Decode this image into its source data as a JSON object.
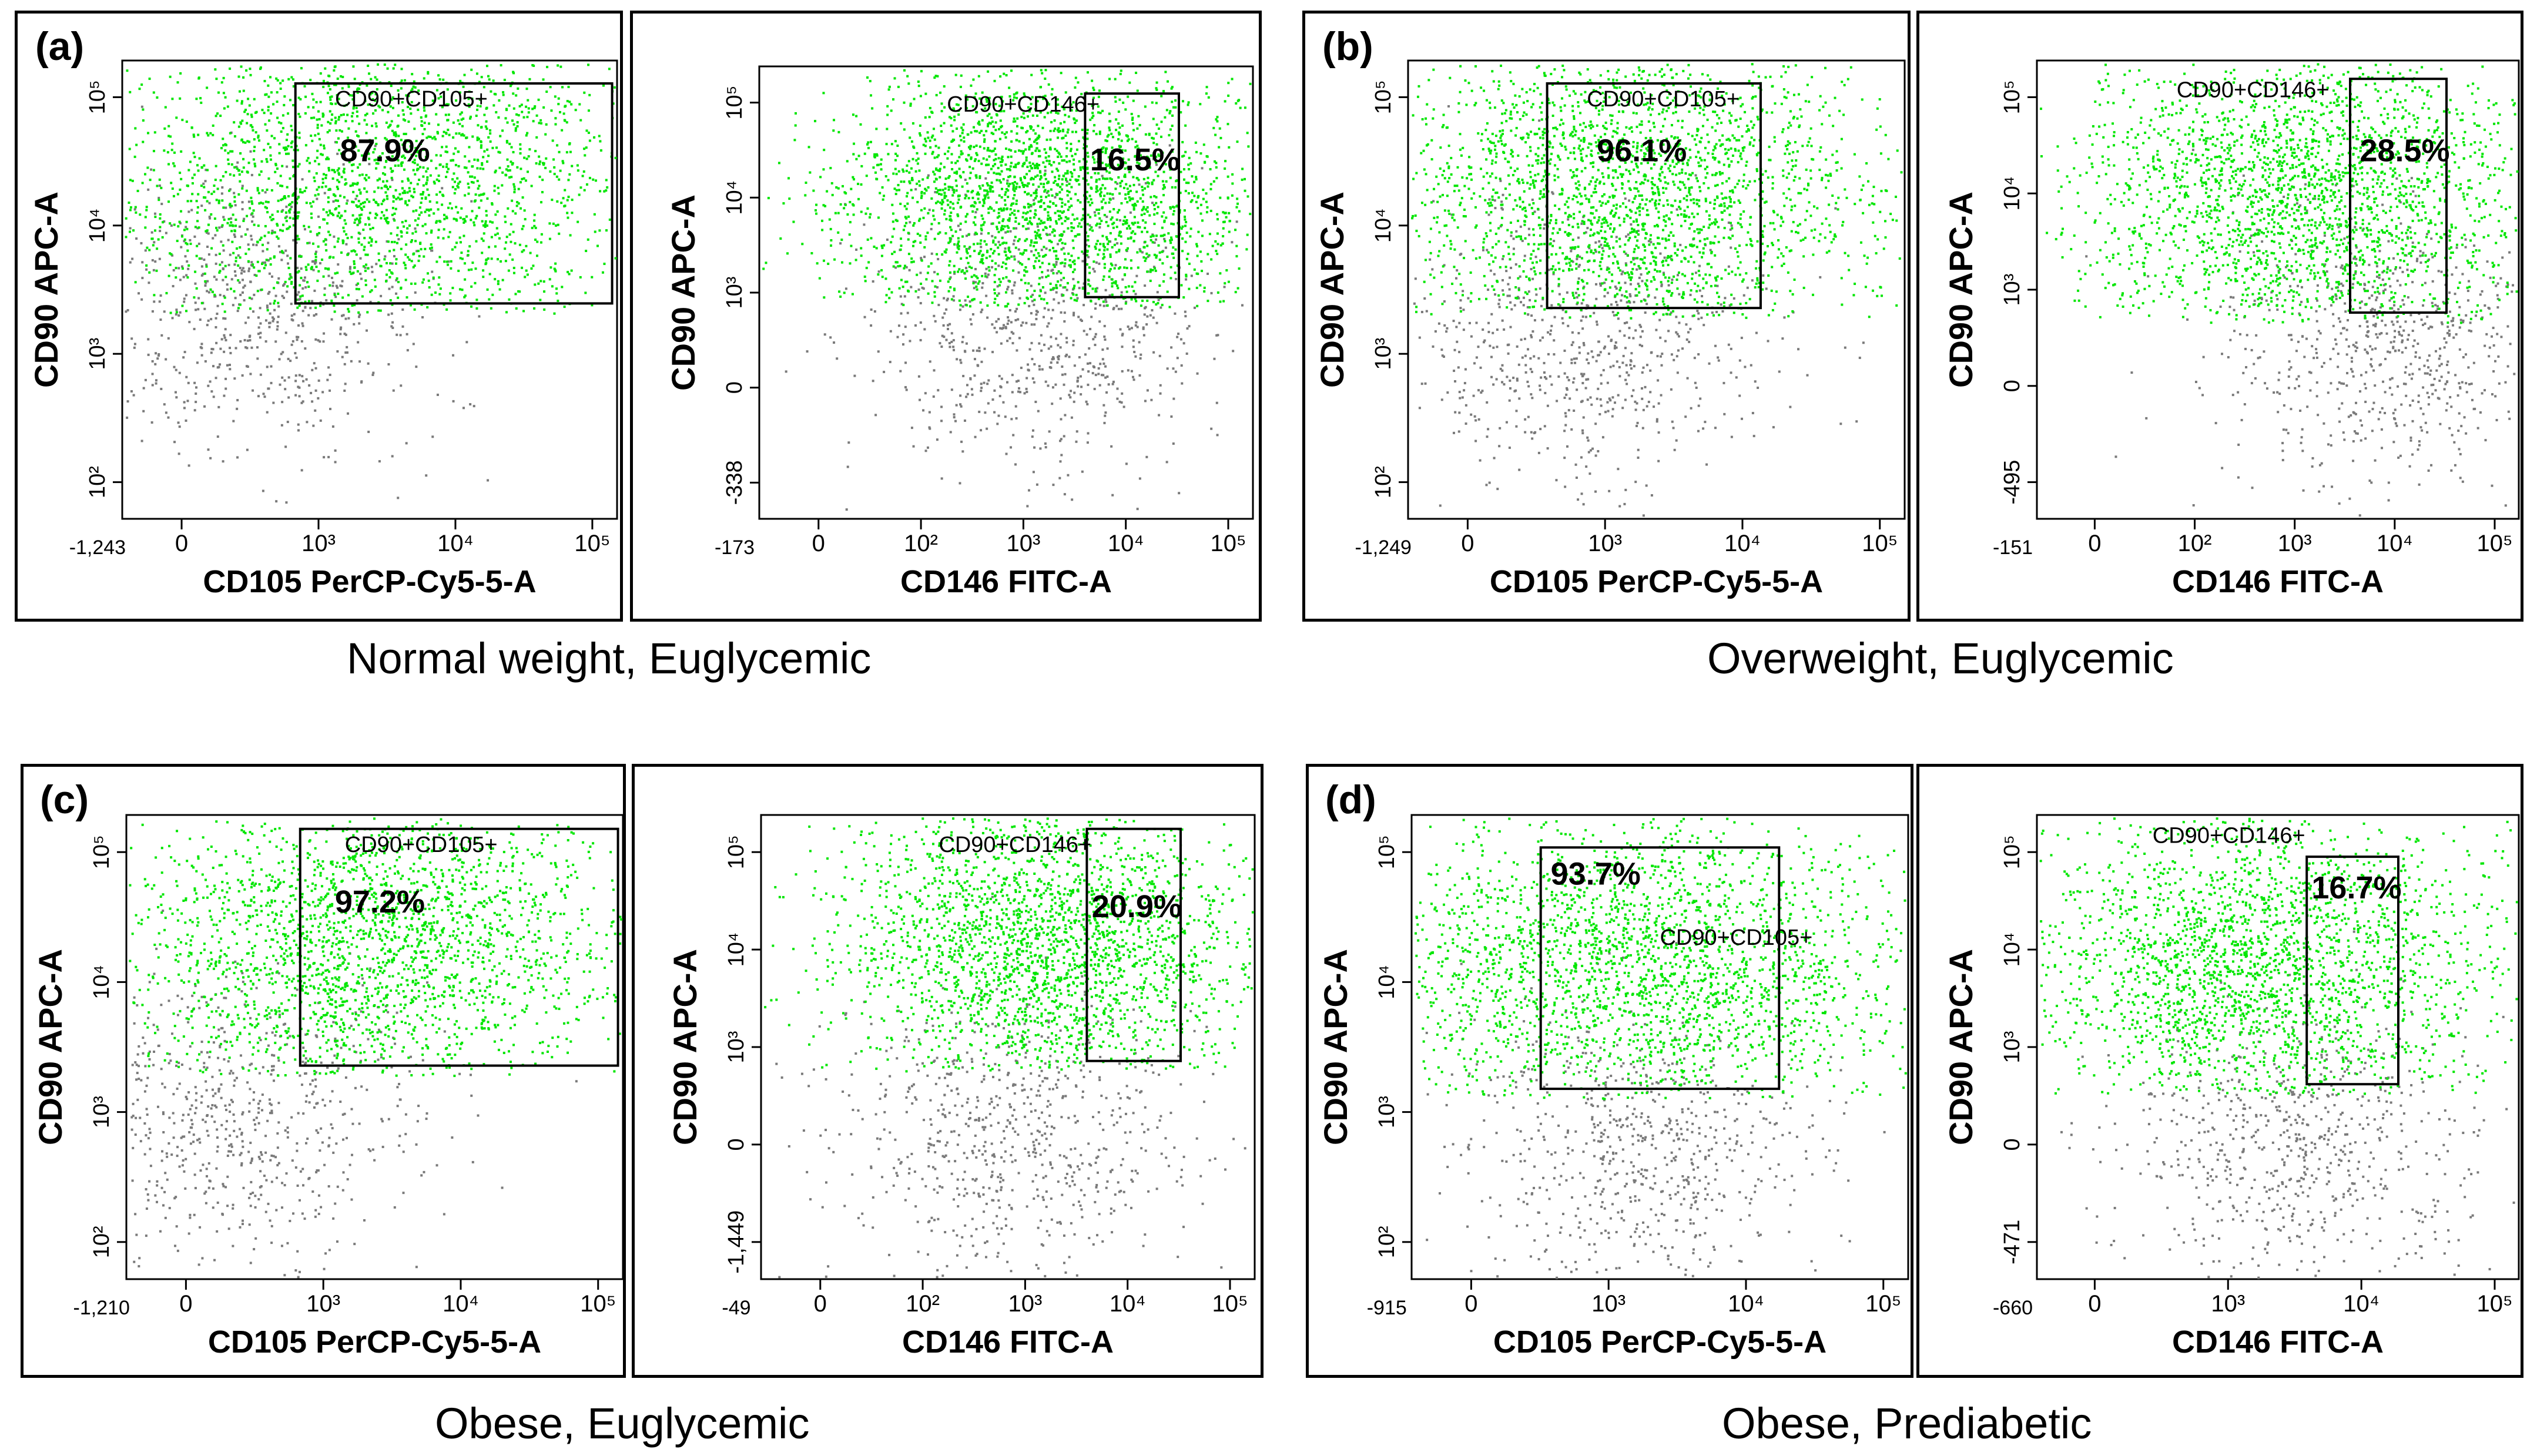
{
  "figure": {
    "groups": [
      {
        "letter": "(a)",
        "caption": "Normal  weight,  Euglycemic"
      },
      {
        "letter": "(b)",
        "caption": "Overweight,  Euglycemic"
      },
      {
        "letter": "(c)",
        "caption": "Obese,  Euglycemic"
      },
      {
        "letter": "(d)",
        "caption": "Obese,  Prediabetic"
      }
    ]
  },
  "colors": {
    "gated": "#00e600",
    "ungated": "#7a7a7a",
    "gate_line": "#000000"
  },
  "chart_data": [
    {
      "type": "scatter",
      "group": "(a)",
      "xlabel": "CD105 PerCP-Cy5-5-A",
      "ylabel": "CD90 APC-A",
      "x_ticks": [
        "-1,243",
        "0",
        "10³",
        "10⁴",
        "10⁵"
      ],
      "y_ticks": [
        "10²",
        "10³",
        "10⁴",
        "10⁵"
      ],
      "gate": "CD90+CD105+",
      "percent": "87.9%"
    },
    {
      "type": "scatter",
      "group": "(a)",
      "xlabel": "CD146 FITC-A",
      "ylabel": "CD90 APC-A",
      "x_ticks": [
        "-173",
        "0",
        "10²",
        "10³",
        "10⁴",
        "10⁵"
      ],
      "y_ticks": [
        "-338",
        "0",
        "10³",
        "10⁴",
        "10⁵"
      ],
      "gate": "CD90+CD146+",
      "percent": "16.5%"
    },
    {
      "type": "scatter",
      "group": "(b)",
      "xlabel": "CD105 PerCP-Cy5-5-A",
      "ylabel": "CD90 APC-A",
      "x_ticks": [
        "-1,249",
        "0",
        "10³",
        "10⁴",
        "10⁵"
      ],
      "y_ticks": [
        "10²",
        "10³",
        "10⁴",
        "10⁵"
      ],
      "gate": "CD90+CD105+",
      "percent": "96.1%"
    },
    {
      "type": "scatter",
      "group": "(b)",
      "xlabel": "CD146 FITC-A",
      "ylabel": "CD90 APC-A",
      "x_ticks": [
        "-151",
        "0",
        "10²",
        "10³",
        "10⁴",
        "10⁵"
      ],
      "y_ticks": [
        "-495",
        "0",
        "10³",
        "10⁴",
        "10⁵"
      ],
      "gate": "CD90+CD146+",
      "percent": "28.5%"
    },
    {
      "type": "scatter",
      "group": "(c)",
      "xlabel": "CD105 PerCP-Cy5-5-A",
      "ylabel": "CD90 APC-A",
      "x_ticks": [
        "-1,210",
        "0",
        "10³",
        "10⁴",
        "10⁵"
      ],
      "y_ticks": [
        "10²",
        "10³",
        "10⁴",
        "10⁵"
      ],
      "gate": "CD90+CD105+",
      "percent": "97.2%"
    },
    {
      "type": "scatter",
      "group": "(c)",
      "xlabel": "CD146 FITC-A",
      "ylabel": "CD90 APC-A",
      "x_ticks": [
        "-49",
        "0",
        "10²",
        "10³",
        "10⁴",
        "10⁵"
      ],
      "y_ticks": [
        "-1,449",
        "0",
        "10³",
        "10⁴",
        "10⁵"
      ],
      "gate": "CD90+CD146+",
      "percent": "20.9%"
    },
    {
      "type": "scatter",
      "group": "(d)",
      "xlabel": "CD105 PerCP-Cy5-5-A",
      "ylabel": "CD90 APC-A",
      "x_ticks": [
        "-915",
        "0",
        "10³",
        "10⁴",
        "10⁵"
      ],
      "y_ticks": [
        "10²",
        "10³",
        "10⁴",
        "10⁵"
      ],
      "gate": "CD90+CD105+",
      "percent": "93.7%"
    },
    {
      "type": "scatter",
      "group": "(d)",
      "xlabel": "CD146 FITC-A",
      "ylabel": "CD90 APC-A",
      "x_ticks": [
        "-660",
        "0",
        "10³",
        "10⁴",
        "10⁵"
      ],
      "y_ticks": [
        "-471",
        "0",
        "10³",
        "10⁴",
        "10⁵"
      ],
      "gate": "CD90+CD146+",
      "percent": "16.7%"
    }
  ]
}
